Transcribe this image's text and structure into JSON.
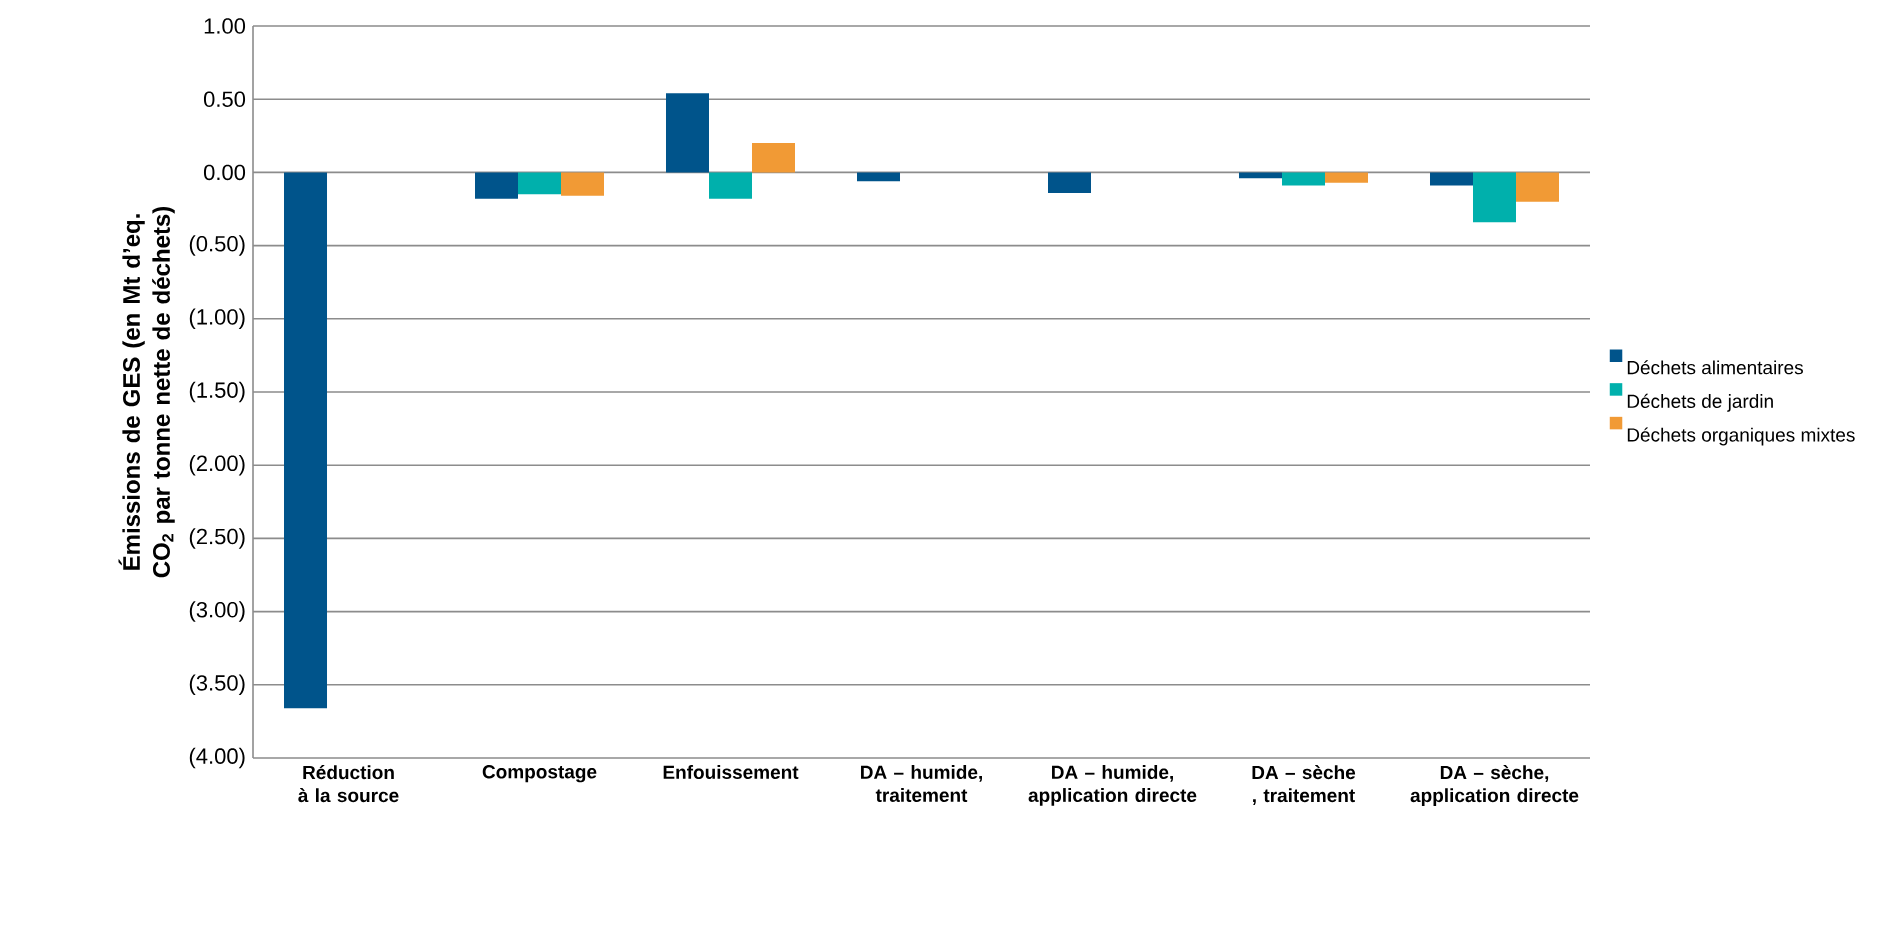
{
  "chart_data": {
    "type": "bar",
    "ylabel": "Émissions de GES (en Mt d’eq. CO$_{2}$ par tonne nette de déchets)",
    "categories": [
      "Réduction à la source",
      "Compostage",
      "Enfouissement",
      "DA – humide, traitement",
      "DA – humide, application directe",
      "DA – sèche , traitement",
      "DA – sèche, application directe"
    ],
    "series": [
      {
        "name": "Déchets alimentaires",
        "color": "#00548b",
        "values": [
          -3.66,
          -0.18,
          0.54,
          -0.06,
          -0.14,
          -0.04,
          -0.09
        ]
      },
      {
        "name": "Déchets de jardin",
        "color": "#00b0ac",
        "values": [
          null,
          -0.15,
          -0.18,
          null,
          null,
          -0.09,
          -0.34
        ]
      },
      {
        "name": "Déchets organiques mixtes",
        "color": "#f19a35",
        "values": [
          null,
          -0.16,
          0.2,
          null,
          null,
          -0.07,
          -0.2
        ]
      }
    ],
    "ylim": [
      -4,
      1
    ],
    "yticks": [
      {
        "value": 1,
        "label": "1.00"
      },
      {
        "value": 0.5,
        "label": "0.50"
      },
      {
        "value": 0,
        "label": "0.00"
      },
      {
        "value": -0.5,
        "label": "(0.50)"
      },
      {
        "value": -1,
        "label": "(1.00)"
      },
      {
        "value": -1.5,
        "label": "(1.50)"
      },
      {
        "value": -2,
        "label": "(2.00)"
      },
      {
        "value": -2.5,
        "label": "(2.50)"
      },
      {
        "value": -3,
        "label": "(3.00)"
      },
      {
        "value": -3.5,
        "label": "(3.50)"
      },
      {
        "value": -4,
        "label": "(4.00)"
      }
    ],
    "grid": "y",
    "legend": "right"
  }
}
